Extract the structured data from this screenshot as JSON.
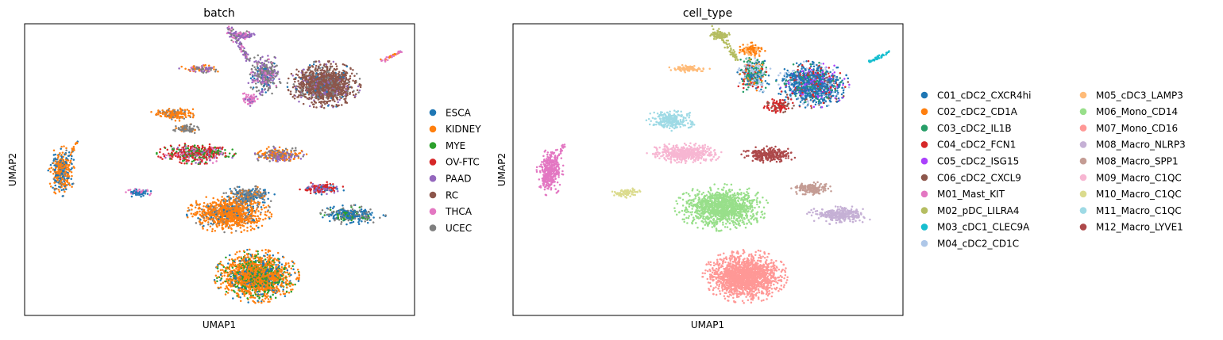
{
  "chart_data": [
    {
      "type": "scatter",
      "title": "batch",
      "xlabel": "UMAP1",
      "ylabel": "UMAP2",
      "xlim": [
        0,
        100
      ],
      "ylim": [
        0,
        100
      ],
      "grid": false,
      "legend_placement": "right",
      "series": [
        {
          "name": "ESCA",
          "color": "#1f77b4"
        },
        {
          "name": "KIDNEY",
          "color": "#ff7f0e"
        },
        {
          "name": "MYE",
          "color": "#2ca02c"
        },
        {
          "name": "OV-FTC",
          "color": "#d62728"
        },
        {
          "name": "PAAD",
          "color": "#9467bd"
        },
        {
          "name": "RC",
          "color": "#8c564b"
        },
        {
          "name": "THCA",
          "color": "#e377c2"
        },
        {
          "name": "UCEC",
          "color": "#7f7f7f"
        }
      ],
      "clusters": [
        {
          "x": 76.8,
          "y": 79.2,
          "rx": 8.2,
          "ry": 7.0,
          "n": 1400,
          "mix": [
            [
              5,
              0.75
            ],
            [
              7,
              0.12
            ],
            [
              4,
              0.08
            ],
            [
              0,
              0.05
            ]
          ]
        },
        {
          "x": 61.6,
          "y": 82.6,
          "rx": 4.0,
          "ry": 6.2,
          "n": 350,
          "mix": [
            [
              7,
              0.55
            ],
            [
              4,
              0.25
            ],
            [
              0,
              0.1
            ],
            [
              6,
              0.1
            ]
          ]
        },
        {
          "x": 57.8,
          "y": 74.0,
          "rx": 2.4,
          "ry": 2.4,
          "n": 60,
          "mix": [
            [
              6,
              0.7
            ],
            [
              4,
              0.3
            ]
          ]
        },
        {
          "x": 56.0,
          "y": 96.0,
          "rx": 2.6,
          "ry": 1.3,
          "n": 90,
          "mix": [
            [
              4,
              0.5
            ],
            [
              6,
              0.3
            ],
            [
              7,
              0.2
            ]
          ]
        },
        {
          "x": 45.0,
          "y": 84.5,
          "rx": 5.2,
          "ry": 1.2,
          "n": 90,
          "mix": [
            [
              7,
              0.35
            ],
            [
              1,
              0.35
            ],
            [
              4,
              0.2
            ],
            [
              6,
              0.1
            ]
          ]
        },
        {
          "x": 38.5,
          "y": 69.0,
          "rx": 5.5,
          "ry": 2.2,
          "n": 170,
          "mix": [
            [
              1,
              0.8
            ],
            [
              7,
              0.2
            ]
          ]
        },
        {
          "x": 41.5,
          "y": 64.0,
          "rx": 3.0,
          "ry": 1.6,
          "n": 80,
          "mix": [
            [
              7,
              0.85
            ],
            [
              1,
              0.15
            ]
          ]
        },
        {
          "x": 44.0,
          "y": 55.5,
          "rx": 8.8,
          "ry": 3.1,
          "n": 480,
          "mix": [
            [
              3,
              0.45
            ],
            [
              2,
              0.3
            ],
            [
              4,
              0.12
            ],
            [
              6,
              0.13
            ]
          ]
        },
        {
          "x": 65.5,
          "y": 55.0,
          "rx": 6.2,
          "ry": 2.6,
          "n": 260,
          "mix": [
            [
              1,
              0.45
            ],
            [
              7,
              0.3
            ],
            [
              4,
              0.25
            ]
          ]
        },
        {
          "x": 9.5,
          "y": 49.5,
          "rx": 3.0,
          "ry": 7.5,
          "n": 320,
          "mix": [
            [
              1,
              0.55
            ],
            [
              0,
              0.35
            ],
            [
              7,
              0.1
            ]
          ]
        },
        {
          "x": 29.3,
          "y": 42.2,
          "rx": 3.5,
          "ry": 1.4,
          "n": 70,
          "mix": [
            [
              0,
              0.6
            ],
            [
              6,
              0.4
            ]
          ]
        },
        {
          "x": 52.5,
          "y": 35.0,
          "rx": 9.5,
          "ry": 5.8,
          "n": 1000,
          "mix": [
            [
              1,
              0.8
            ],
            [
              7,
              0.12
            ],
            [
              0,
              0.08
            ]
          ]
        },
        {
          "x": 57.5,
          "y": 41.0,
          "rx": 5.8,
          "ry": 3.0,
          "n": 250,
          "mix": [
            [
              7,
              0.6
            ],
            [
              0,
              0.25
            ],
            [
              1,
              0.15
            ]
          ]
        },
        {
          "x": 76.3,
          "y": 43.5,
          "rx": 5.0,
          "ry": 2.0,
          "n": 160,
          "mix": [
            [
              3,
              0.55
            ],
            [
              4,
              0.3
            ],
            [
              0,
              0.15
            ]
          ]
        },
        {
          "x": 84.0,
          "y": 34.5,
          "rx": 7.5,
          "ry": 2.9,
          "n": 300,
          "mix": [
            [
              0,
              0.55
            ],
            [
              7,
              0.3
            ],
            [
              2,
              0.15
            ]
          ]
        },
        {
          "x": 59.5,
          "y": 13.5,
          "rx": 9.5,
          "ry": 8.0,
          "n": 1700,
          "mix": [
            [
              1,
              0.62
            ],
            [
              2,
              0.22
            ],
            [
              0,
              0.16
            ]
          ]
        }
      ],
      "streaks": [
        {
          "x1": 52.5,
          "y1": 98.5,
          "x2": 57.5,
          "y2": 87.5,
          "w": 1.6,
          "n": 80,
          "mix": [
            [
              4,
              0.5
            ],
            [
              6,
              0.3
            ],
            [
              7,
              0.2
            ]
          ]
        },
        {
          "x1": 91.5,
          "y1": 87.0,
          "x2": 96.5,
          "y2": 90.5,
          "w": 0.9,
          "n": 40,
          "mix": [
            [
              6,
              0.5
            ],
            [
              1,
              0.3
            ],
            [
              4,
              0.2
            ]
          ]
        },
        {
          "x1": 7.5,
          "y1": 45.0,
          "x2": 13.5,
          "y2": 59.5,
          "w": 1.0,
          "n": 60,
          "mix": [
            [
              1,
              0.7
            ],
            [
              0,
              0.3
            ]
          ]
        }
      ]
    },
    {
      "type": "scatter",
      "title": "cell_type",
      "xlabel": "UMAP1",
      "ylabel": "UMAP2",
      "xlim": [
        0,
        100
      ],
      "ylim": [
        0,
        100
      ],
      "grid": false,
      "legend_placement": "right",
      "series": [
        {
          "name": "C01_cDC2_CXCR4hi",
          "color": "#1f77b4"
        },
        {
          "name": "C02_cDC2_CD1A",
          "color": "#ff7f0e"
        },
        {
          "name": "C03_cDC2_IL1B",
          "color": "#279e68"
        },
        {
          "name": "C04_cDC2_FCN1",
          "color": "#d62728"
        },
        {
          "name": "C05_cDC2_ISG15",
          "color": "#aa40fc"
        },
        {
          "name": "C06_cDC2_CXCL9",
          "color": "#8c564b"
        },
        {
          "name": "M01_Mast_KIT",
          "color": "#e377c2"
        },
        {
          "name": "M02_pDC_LILRA4",
          "color": "#b5bd61"
        },
        {
          "name": "M03_cDC1_CLEC9A",
          "color": "#17becf"
        },
        {
          "name": "M04_cDC2_CD1C",
          "color": "#aec7e8"
        },
        {
          "name": "M05_cDC3_LAMP3",
          "color": "#ffbb78"
        },
        {
          "name": "M06_Mono_CD14",
          "color": "#98df8a"
        },
        {
          "name": "M07_Mono_CD16",
          "color": "#ff9896"
        },
        {
          "name": "M08_Macro_NLRP3",
          "color": "#c5b0d5"
        },
        {
          "name": "M08_Macro_SPP1",
          "color": "#c49c94"
        },
        {
          "name": "M09_Macro_C1QC",
          "color": "#f7b6d2"
        },
        {
          "name": "M10_Macro_C1QC",
          "color": "#dbdb8d"
        },
        {
          "name": "M11_Macro_C1QC",
          "color": "#9edae5"
        },
        {
          "name": "M12_Macro_LYVE1",
          "color": "#ad494a"
        }
      ],
      "clusters": [
        {
          "x": 76.8,
          "y": 79.2,
          "rx": 8.2,
          "ry": 7.0,
          "n": 1400,
          "mix": [
            [
              0,
              0.55
            ],
            [
              9,
              0.15
            ],
            [
              4,
              0.1
            ],
            [
              3,
              0.1
            ],
            [
              2,
              0.05
            ],
            [
              5,
              0.05
            ]
          ]
        },
        {
          "x": 61.6,
          "y": 82.6,
          "rx": 4.0,
          "ry": 6.2,
          "n": 350,
          "mix": [
            [
              2,
              0.35
            ],
            [
              9,
              0.3
            ],
            [
              0,
              0.15
            ],
            [
              3,
              0.1
            ],
            [
              1,
              0.1
            ]
          ]
        },
        {
          "x": 61.0,
          "y": 91.0,
          "rx": 3.2,
          "ry": 2.2,
          "n": 120,
          "mix": [
            [
              1,
              0.7
            ],
            [
              10,
              0.3
            ]
          ]
        },
        {
          "x": 68.0,
          "y": 72.0,
          "rx": 3.5,
          "ry": 2.2,
          "n": 100,
          "mix": [
            [
              3,
              0.6
            ],
            [
              5,
              0.4
            ]
          ]
        },
        {
          "x": 53.0,
          "y": 96.0,
          "rx": 2.5,
          "ry": 1.3,
          "n": 90,
          "mix": [
            [
              7,
              1.0
            ]
          ]
        },
        {
          "x": 45.0,
          "y": 84.5,
          "rx": 5.2,
          "ry": 1.2,
          "n": 90,
          "mix": [
            [
              10,
              1.0
            ]
          ]
        },
        {
          "x": 40.5,
          "y": 67.0,
          "rx": 5.8,
          "ry": 3.2,
          "n": 240,
          "mix": [
            [
              17,
              1.0
            ]
          ]
        },
        {
          "x": 44.0,
          "y": 55.5,
          "rx": 8.8,
          "ry": 3.1,
          "n": 480,
          "mix": [
            [
              15,
              1.0
            ]
          ]
        },
        {
          "x": 65.5,
          "y": 55.0,
          "rx": 6.2,
          "ry": 2.6,
          "n": 260,
          "mix": [
            [
              18,
              1.0
            ]
          ]
        },
        {
          "x": 9.5,
          "y": 49.5,
          "rx": 3.0,
          "ry": 7.5,
          "n": 320,
          "mix": [
            [
              6,
              1.0
            ]
          ]
        },
        {
          "x": 29.3,
          "y": 42.2,
          "rx": 3.5,
          "ry": 1.6,
          "n": 70,
          "mix": [
            [
              16,
              1.0
            ]
          ]
        },
        {
          "x": 53.5,
          "y": 37.0,
          "rx": 10.5,
          "ry": 7.0,
          "n": 1200,
          "mix": [
            [
              11,
              1.0
            ]
          ]
        },
        {
          "x": 76.3,
          "y": 43.5,
          "rx": 5.0,
          "ry": 2.0,
          "n": 160,
          "mix": [
            [
              14,
              1.0
            ]
          ]
        },
        {
          "x": 84.0,
          "y": 34.5,
          "rx": 7.5,
          "ry": 2.9,
          "n": 300,
          "mix": [
            [
              13,
              1.0
            ]
          ]
        },
        {
          "x": 59.5,
          "y": 13.5,
          "rx": 9.5,
          "ry": 8.0,
          "n": 1700,
          "mix": [
            [
              12,
              1.0
            ]
          ]
        }
      ],
      "streaks": [
        {
          "x1": 52.0,
          "y1": 98.5,
          "x2": 57.5,
          "y2": 87.5,
          "w": 1.6,
          "n": 80,
          "mix": [
            [
              7,
              1.0
            ]
          ]
        },
        {
          "x1": 91.5,
          "y1": 87.0,
          "x2": 96.5,
          "y2": 90.5,
          "w": 0.9,
          "n": 40,
          "mix": [
            [
              8,
              1.0
            ]
          ]
        },
        {
          "x1": 7.5,
          "y1": 45.0,
          "x2": 13.5,
          "y2": 59.5,
          "w": 1.0,
          "n": 60,
          "mix": [
            [
              6,
              1.0
            ]
          ]
        }
      ]
    }
  ]
}
